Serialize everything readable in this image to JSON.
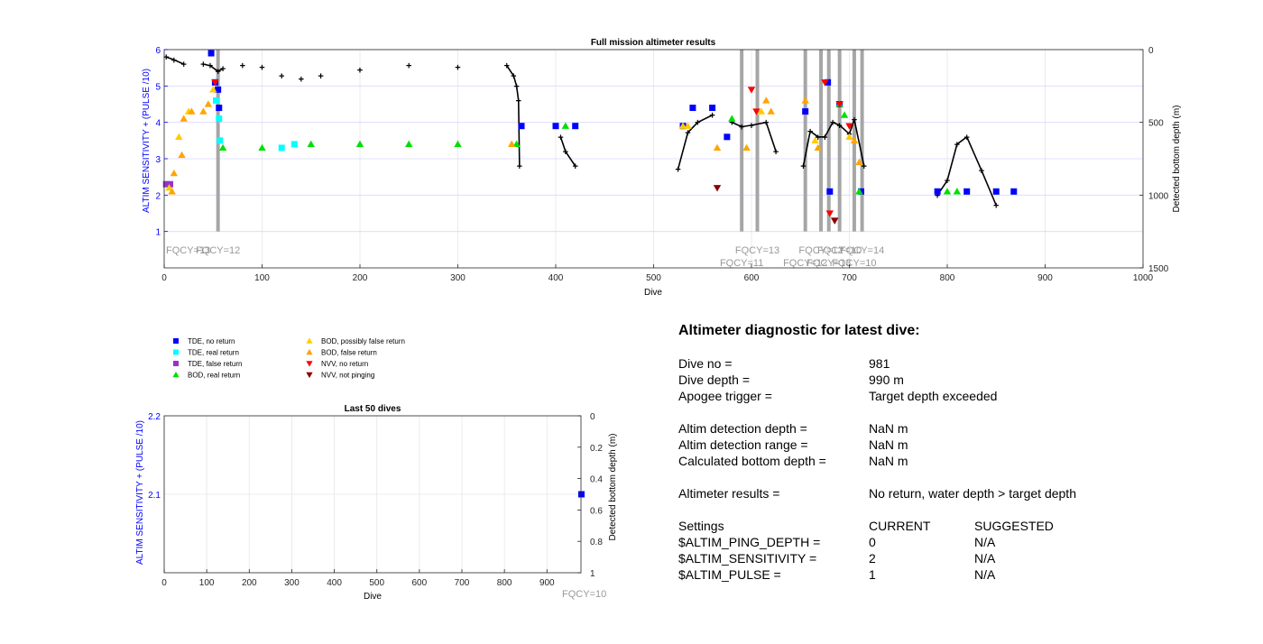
{
  "main_chart": {
    "title": "Full mission altimeter results",
    "xlabel": "Dive",
    "ylabel_left": "ALTIM SENSITIVITY + (PULSE /10)",
    "ylabel_right": "Detected bottom depth (m)",
    "x_ticks": [
      "0",
      "100",
      "200",
      "300",
      "400",
      "500",
      "600",
      "700",
      "800",
      "900",
      "1000"
    ],
    "y_left_ticks": [
      "1",
      "2",
      "3",
      "4",
      "5",
      "6"
    ],
    "y_right_ticks": [
      "0",
      "500",
      "1000",
      "1500"
    ]
  },
  "legend": {
    "items": [
      {
        "label": "TDE, no return",
        "marker": "square",
        "color": "#0000ff"
      },
      {
        "label": "TDE, real return",
        "marker": "square",
        "color": "#00ffff"
      },
      {
        "label": "TDE, false return",
        "marker": "square",
        "color": "#9933cc"
      },
      {
        "label": "BOD, real return",
        "marker": "triangle-up",
        "color": "#00e000"
      },
      {
        "label": "BOD, possibly false return",
        "marker": "triangle-up",
        "color": "#ffcc00"
      },
      {
        "label": "BOD, false return",
        "marker": "triangle-up",
        "color": "#ffa500"
      },
      {
        "label": "NVV, no return",
        "marker": "triangle-down",
        "color": "#ff0000"
      },
      {
        "label": "NVV, not pinging",
        "marker": "triangle-down",
        "color": "#8b0000"
      }
    ]
  },
  "small_chart": {
    "title": "Last 50 dives",
    "xlabel": "Dive",
    "ylabel_left": "ALTIM SENSITIVITY + (PULSE /10)",
    "ylabel_right": "Detected bottom depth (m)",
    "x_ticks": [
      "0",
      "100",
      "200",
      "300",
      "400",
      "500",
      "600",
      "700",
      "800",
      "900"
    ],
    "y_left_ticks": [
      "2.1",
      "2.2"
    ],
    "y_right_ticks": [
      "0",
      "0.2",
      "0.4",
      "0.6",
      "0.8",
      "1"
    ],
    "fqcy_label": "FQCY=10"
  },
  "diagnostic": {
    "title": "Altimeter diagnostic for latest dive:",
    "dive_no_label": "Dive no =",
    "dive_no_value": "981",
    "dive_depth_label": "Dive depth =",
    "dive_depth_value": "990 m",
    "apogee_label": "Apogee trigger =",
    "apogee_value": "Target depth exceeded",
    "altim_depth_label": "Altim detection depth =",
    "altim_depth_value": "NaN m",
    "altim_range_label": "Altim detection range =",
    "altim_range_value": "NaN m",
    "calc_bottom_label": "Calculated bottom depth =",
    "calc_bottom_value": "NaN m",
    "results_label": "Altimeter results =",
    "results_value": "No return, water depth > target depth",
    "settings_label": "Settings",
    "current_header": "CURRENT",
    "suggested_header": "SUGGESTED",
    "ping_depth_label": "$ALTIM_PING_DEPTH =",
    "ping_depth_current": "0",
    "ping_depth_suggested": "N/A",
    "sensitivity_label": "$ALTIM_SENSITIVITY =",
    "sensitivity_current": "2",
    "sensitivity_suggested": "N/A",
    "pulse_label": "$ALTIM_PULSE =",
    "pulse_current": "1",
    "pulse_suggested": "N/A"
  },
  "chart_data": [
    {
      "type": "scatter",
      "title": "Full mission altimeter results",
      "xlabel": "Dive",
      "ylabel": "ALTIM SENSITIVITY + (PULSE /10)",
      "y2label": "Detected bottom depth (m)",
      "xlim": [
        0,
        1000
      ],
      "ylim": [
        0,
        6
      ],
      "y2lim": [
        1500,
        0
      ],
      "grid": true,
      "frequency_changes": [
        {
          "x": 55,
          "label": "FQCY=12"
        },
        {
          "x": 590,
          "label": "FQCY=11"
        },
        {
          "x": 606,
          "label": "FQCY=13"
        },
        {
          "x": 655,
          "label": "FQCY=12"
        },
        {
          "x": 671,
          "label": "FQCY=12"
        },
        {
          "x": 679,
          "label": "FQCY=13"
        },
        {
          "x": 690,
          "label": "FQCY=10"
        },
        {
          "x": 705,
          "label": "FQCY=10"
        },
        {
          "x": 713,
          "label": "FQCY=14"
        }
      ],
      "start_label": "FQCY=13",
      "series": [
        {
          "name": "TDE, no return",
          "points": [
            [
              48,
              5.9
            ],
            [
              52,
              5.1
            ],
            [
              55,
              4.9
            ],
            [
              56,
              4.4
            ],
            [
              365,
              3.9
            ],
            [
              400,
              3.9
            ],
            [
              420,
              3.9
            ],
            [
              530,
              3.9
            ],
            [
              540,
              4.4
            ],
            [
              560,
              4.4
            ],
            [
              575,
              3.6
            ],
            [
              655,
              4.3
            ],
            [
              678,
              5.1
            ],
            [
              680,
              2.1
            ],
            [
              690,
              4.5
            ],
            [
              712,
              2.1
            ],
            [
              790,
              2.1
            ],
            [
              820,
              2.1
            ],
            [
              850,
              2.1
            ],
            [
              868,
              2.1
            ]
          ]
        },
        {
          "name": "TDE, real return",
          "points": [
            [
              53,
              4.6
            ],
            [
              56,
              4.1
            ],
            [
              57,
              3.5
            ],
            [
              120,
              3.3
            ],
            [
              133,
              3.4
            ]
          ]
        },
        {
          "name": "TDE, false return",
          "points": [
            [
              2,
              2.3
            ],
            [
              6,
              2.3
            ]
          ]
        },
        {
          "name": "BOD, real return",
          "points": [
            [
              60,
              3.3
            ],
            [
              100,
              3.3
            ],
            [
              150,
              3.4
            ],
            [
              200,
              3.4
            ],
            [
              250,
              3.4
            ],
            [
              300,
              3.4
            ],
            [
              360,
              3.4
            ],
            [
              410,
              3.9
            ],
            [
              580,
              4.1
            ],
            [
              690,
              4.5
            ],
            [
              695,
              4.2
            ],
            [
              710,
              2.1
            ],
            [
              800,
              2.1
            ],
            [
              810,
              2.1
            ]
          ]
        },
        {
          "name": "BOD, possibly false return",
          "points": [
            [
              5,
              2.2
            ],
            [
              15,
              3.6
            ],
            [
              25,
              4.3
            ],
            [
              50,
              4.9
            ],
            [
              530,
              3.9
            ],
            [
              535,
              3.9
            ],
            [
              610,
              4.3
            ],
            [
              665,
              3.5
            ],
            [
              700,
              3.6
            ]
          ]
        },
        {
          "name": "BOD, false return",
          "points": [
            [
              8,
              2.1
            ],
            [
              10,
              2.6
            ],
            [
              18,
              3.1
            ],
            [
              20,
              4.1
            ],
            [
              28,
              4.3
            ],
            [
              40,
              4.3
            ],
            [
              45,
              4.5
            ],
            [
              355,
              3.4
            ],
            [
              565,
              3.3
            ],
            [
              595,
              3.3
            ],
            [
              615,
              4.6
            ],
            [
              620,
              4.3
            ],
            [
              655,
              4.6
            ],
            [
              668,
              3.3
            ],
            [
              705,
              3.5
            ],
            [
              710,
              2.9
            ]
          ]
        },
        {
          "name": "NVV, no return",
          "points": [
            [
              52,
              5.1
            ],
            [
              600,
              4.9
            ],
            [
              605,
              4.3
            ],
            [
              675,
              5.1
            ],
            [
              680,
              1.5
            ],
            [
              685,
              1.3
            ],
            [
              690,
              4.5
            ],
            [
              700,
              3.9
            ]
          ]
        },
        {
          "name": "NVV, not pinging",
          "points": [
            [
              565,
              2.2
            ],
            [
              685,
              1.3
            ]
          ]
        },
        {
          "name": "Detected bottom depth (m)",
          "axis": "right",
          "points": [
            [
              2,
              50
            ],
            [
              10,
              70
            ],
            [
              20,
              100
            ],
            [
              40,
              100
            ],
            [
              47,
              110
            ],
            [
              55,
              150
            ],
            [
              60,
              130
            ],
            [
              80,
              110
            ],
            [
              100,
              120
            ],
            [
              120,
              180
            ],
            [
              140,
              200
            ],
            [
              160,
              180
            ],
            [
              200,
              140
            ],
            [
              250,
              110
            ],
            [
              300,
              120
            ],
            [
              350,
              110
            ],
            [
              357,
              180
            ],
            [
              360,
              250
            ],
            [
              362,
              350
            ],
            [
              363,
              800
            ],
            [
              405,
              600
            ],
            [
              410,
              700
            ],
            [
              420,
              800
            ],
            [
              525,
              820
            ],
            [
              535,
              570
            ],
            [
              545,
              500
            ],
            [
              560,
              450
            ],
            [
              580,
              500
            ],
            [
              590,
              530
            ],
            [
              600,
              520
            ],
            [
              615,
              500
            ],
            [
              625,
              700
            ],
            [
              653,
              800
            ],
            [
              660,
              560
            ],
            [
              668,
              600
            ],
            [
              675,
              600
            ],
            [
              683,
              500
            ],
            [
              690,
              520
            ],
            [
              700,
              580
            ],
            [
              705,
              480
            ],
            [
              715,
              800
            ],
            [
              790,
              1000
            ],
            [
              800,
              900
            ],
            [
              810,
              650
            ],
            [
              820,
              600
            ],
            [
              835,
              830
            ],
            [
              850,
              1070
            ]
          ]
        }
      ]
    },
    {
      "type": "scatter",
      "title": "Last 50 dives",
      "xlabel": "Dive",
      "ylabel": "ALTIM SENSITIVITY + (PULSE /10)",
      "y2label": "Detected bottom depth (m)",
      "xlim": [
        0,
        980
      ],
      "ylim": [
        2,
        2.2
      ],
      "y2lim": [
        1,
        0
      ],
      "grid": true,
      "series": [
        {
          "name": "TDE, no return",
          "points": [
            [
              981,
              2.1
            ]
          ]
        }
      ]
    }
  ]
}
